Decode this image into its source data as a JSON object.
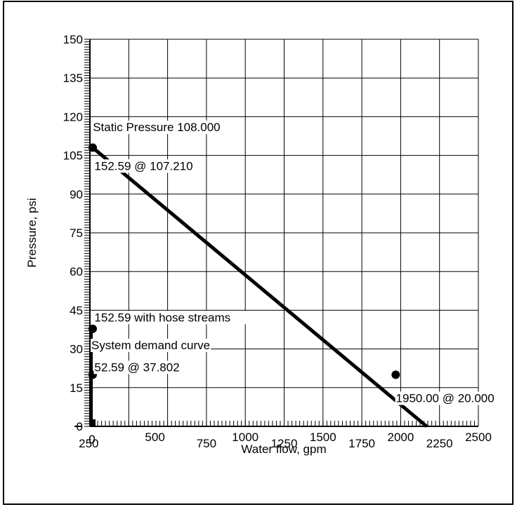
{
  "chart_data": {
    "type": "line",
    "xlabel": "Water flow, gpm",
    "ylabel": "Pressure, psi",
    "xlim": [
      0,
      2500
    ],
    "ylim": [
      0,
      150
    ],
    "grid": true,
    "x_ticks": [
      "250",
      "500",
      "750",
      "1000",
      "1250",
      "1500",
      "1750",
      "2000",
      "2250",
      "2500"
    ],
    "x_tick_zero": "0",
    "y_ticks": [
      "0",
      "15",
      "30",
      "45",
      "60",
      "75",
      "90",
      "105",
      "120",
      "135",
      "150"
    ],
    "supply_line": {
      "x": [
        0,
        2167
      ],
      "y": [
        108,
        0
      ]
    },
    "demand_line": {
      "x": [
        0,
        0
      ],
      "y": [
        0,
        38
      ]
    },
    "points": [
      {
        "x": 0,
        "y": 108
      },
      {
        "x": 0,
        "y": 37.802
      },
      {
        "x": 0,
        "y": 20
      },
      {
        "x": 1950,
        "y": 20
      },
      {
        "x": 0,
        "y": 0
      }
    ],
    "annotations": [
      {
        "text": "Static Pressure 108.000",
        "x": 10,
        "y": 116
      },
      {
        "text": "152.59 @ 107.210",
        "x": 20,
        "y": 101
      },
      {
        "text": "152.59 with hose streams",
        "x": 20,
        "y": 42.3
      },
      {
        "text": "System demand curve",
        "x": 0,
        "y": 31.5
      },
      {
        "text": "52.59 @ 37.802",
        "x": 20,
        "y": 23
      },
      {
        "text": "1950.00 @ 20.000",
        "x": 1960,
        "y": 11
      }
    ]
  }
}
